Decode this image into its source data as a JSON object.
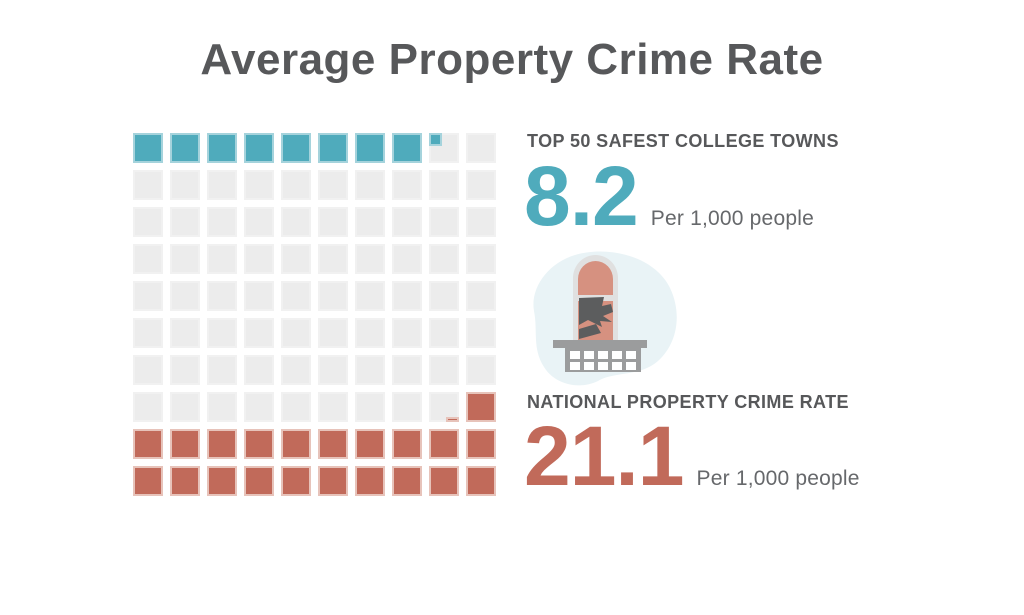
{
  "title": "Average Property Crime Rate",
  "chart_data": {
    "type": "waffle",
    "title": "Average Property Crime Rate",
    "unit": "Per 1,000 people",
    "grid": {
      "rows": 10,
      "columns": 10,
      "value_per_square": 1
    },
    "empty_color": "#ececec",
    "legend_position": "right",
    "series": [
      {
        "name": "TOP 50 SAFEST COLLEGE TOWNS",
        "value": 8.2,
        "color": "#4fabbc",
        "border_color": "#a5d3dc",
        "fill_from": "top-left"
      },
      {
        "name": "NATIONAL PROPERTY CRIME RATE",
        "value": 21.1,
        "color": "#c16a5a",
        "border_color": "#e7c3ba",
        "fill_from": "bottom-right"
      }
    ]
  },
  "stats": {
    "safe": {
      "label": "TOP 50 SAFEST COLLEGE TOWNS",
      "value": "8.2",
      "unit": "Per 1,000 people"
    },
    "national": {
      "label": "NATIONAL PROPERTY CRIME RATE",
      "value": "21.1",
      "unit": "Per 1,000 people"
    }
  },
  "icon": {
    "name": "broken-window",
    "blob_color": "#e9f3f6"
  }
}
